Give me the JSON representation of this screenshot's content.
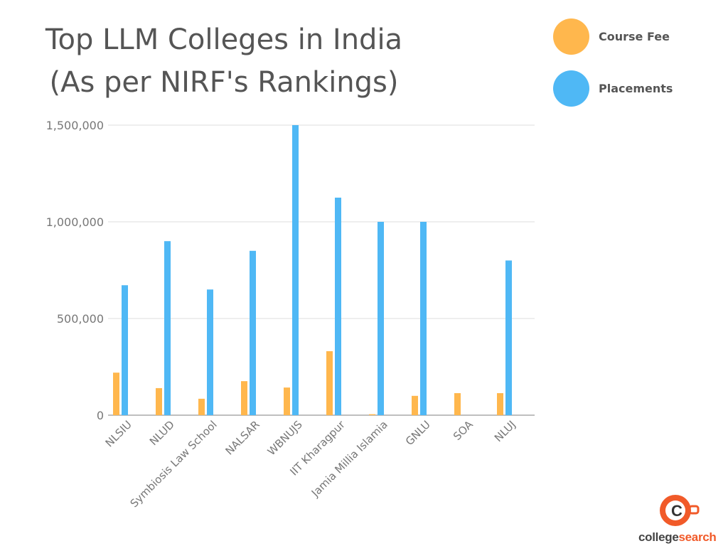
{
  "chart_data": {
    "type": "bar",
    "title": "Top LLM Colleges in India (As per NIRF's Rankings)",
    "title_lines": [
      "Top LLM Colleges in India",
      "(As per NIRF's Rankings)"
    ],
    "categories": [
      "NLSIU",
      "NLUD",
      "Symbiosis Law School",
      "NALSAR",
      "WBNUJS",
      "IIT Kharagpur",
      "Jamia Millia Islamia",
      "GNLU",
      "SOA",
      "NLUJ"
    ],
    "series": [
      {
        "name": "Course Fee",
        "color": "#FFB74D",
        "values": [
          220000,
          140000,
          85000,
          176000,
          143000,
          331000,
          5000,
          100000,
          114000,
          114000
        ]
      },
      {
        "name": "Placements",
        "color": "#4FB8F5",
        "values": [
          672000,
          900000,
          650000,
          850000,
          1500000,
          1125000,
          1000000,
          1000000,
          0,
          800000
        ]
      }
    ],
    "ylim": [
      0,
      1500000
    ],
    "yticks": [
      0,
      500000,
      1000000,
      1500000
    ],
    "ytick_labels": [
      "0",
      "500,000",
      "1,000,000",
      "1,500,000"
    ],
    "xlabel": "",
    "ylabel": "",
    "grid": true,
    "legend_position": "top-right"
  },
  "logo": {
    "brand_a": "college",
    "brand_b": "search",
    "accent": "#F15A29"
  }
}
